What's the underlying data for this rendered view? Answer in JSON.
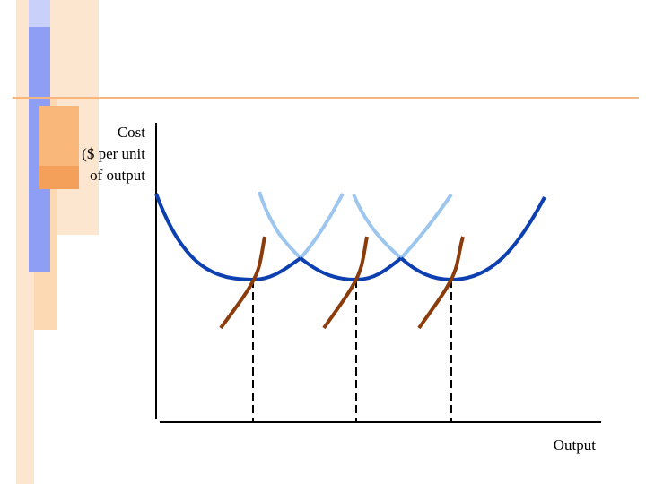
{
  "slide": {
    "ylabel_lines": [
      "Cost",
      "($ per unit",
      "of output"
    ],
    "xlabel": "Output"
  },
  "colors": {
    "background": "#ffffff",
    "decor_orange_light": "#fde6cf",
    "decor_orange": "#f9b87a",
    "decor_orange_strong": "#f5a05a",
    "decor_blue": "#8f9ef5",
    "decor_blue_light": "#c9d1fa",
    "header_rule": "#f5b77d",
    "axis": "#000000",
    "ac_short_run": "#0c3fb0",
    "ac_faded": "#9cc6ee",
    "mc_curve": "#8b3c0c",
    "guide_line": "#000000"
  },
  "diagram": {
    "plants": 3,
    "axis": "cost vs output",
    "legend": "none"
  }
}
